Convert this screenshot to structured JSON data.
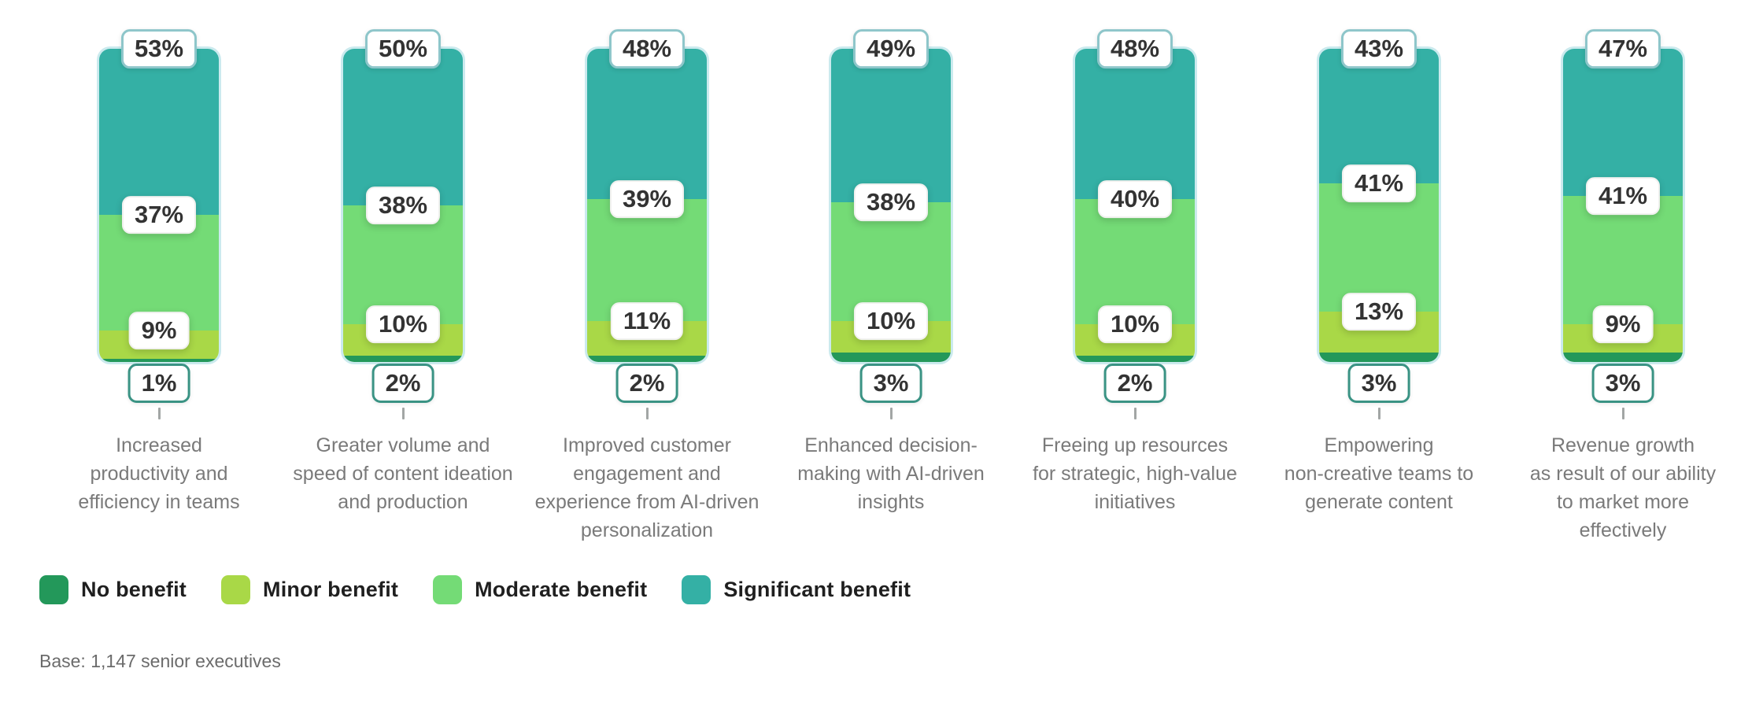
{
  "chart_data": {
    "type": "bar",
    "variant": "stacked-vertical-100-percent",
    "unit": "%",
    "categories": [
      "Increased\nproductivity and\nefficiency in teams",
      "Greater volume and\nspeed of content ideation\nand production",
      "Improved customer\nengagement and\nexperience from AI-driven\npersonalization",
      "Enhanced decision-\nmaking with AI-driven\ninsights",
      "Freeing up resources\nfor strategic, high-value\ninitiatives",
      "Empowering\nnon-creative teams to\ngenerate content",
      "Revenue growth\nas result of our ability\nto market more\neffectively"
    ],
    "series": [
      {
        "name": "No benefit",
        "color": "#23985a",
        "values": [
          1,
          2,
          2,
          3,
          2,
          3,
          3
        ]
      },
      {
        "name": "Minor benefit",
        "color": "#a9d847",
        "values": [
          9,
          10,
          11,
          10,
          10,
          13,
          9
        ]
      },
      {
        "name": "Moderate benefit",
        "color": "#74db76",
        "values": [
          37,
          38,
          39,
          38,
          40,
          41,
          41
        ]
      },
      {
        "name": "Significant benefit",
        "color": "#34b0a5",
        "values": [
          53,
          50,
          48,
          49,
          48,
          43,
          47
        ]
      }
    ],
    "stack_order_top_to_bottom": [
      "Significant benefit",
      "Moderate benefit",
      "Minor benefit",
      "No benefit"
    ],
    "value_labels": "shown in white rounded callouts at each segment boundary",
    "legend_position": "bottom-left",
    "grid": false,
    "footnote": "Base: 1,147 senior executives"
  },
  "colors": {
    "background": "#ffffff",
    "percent_text": "#333333",
    "category_text": "#7a7a7a",
    "callout_border_bottom": "#3a9384",
    "callout_border_top": "#8ec6ca",
    "bar_glow": "#c5e8ec"
  }
}
